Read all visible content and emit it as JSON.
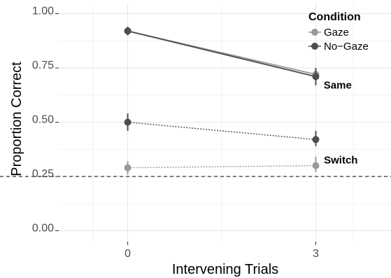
{
  "chart_data": {
    "type": "line",
    "xlabel": "Intervening Trials",
    "ylabel": "Proportion Correct",
    "x": [
      0,
      3
    ],
    "x_tick_labels": [
      "0",
      "3"
    ],
    "xlim": [
      -1.1,
      4.2
    ],
    "ylim": [
      -0.05,
      1.05
    ],
    "y_ticks": [
      0.0,
      0.25,
      0.5,
      0.75,
      1.0
    ],
    "y_tick_labels": [
      "0.00",
      "0.25",
      "0.50",
      "0.75",
      "1.00"
    ],
    "grid": true,
    "reference_line": {
      "y": 0.25,
      "style": "dashed"
    },
    "legend": {
      "title": "Condition",
      "position": "top-right",
      "entries": [
        {
          "label": "Gaze",
          "color": "#999999"
        },
        {
          "label": "No−Gaze",
          "color": "#4d4d4d"
        }
      ]
    },
    "series": [
      {
        "condition": "Gaze",
        "trial_type": "Same",
        "line_style": "solid",
        "color": "#999999",
        "values": [
          0.92,
          0.72
        ],
        "ci_low": [
          0.9,
          0.69
        ],
        "ci_high": [
          0.94,
          0.75
        ]
      },
      {
        "condition": "No-Gaze",
        "trial_type": "Same",
        "line_style": "solid",
        "color": "#4d4d4d",
        "values": [
          0.92,
          0.71
        ],
        "ci_low": [
          0.9,
          0.67
        ],
        "ci_high": [
          0.94,
          0.75
        ]
      },
      {
        "condition": "No-Gaze",
        "trial_type": "Switch",
        "line_style": "dotted",
        "color": "#4d4d4d",
        "values": [
          0.5,
          0.42
        ],
        "ci_low": [
          0.46,
          0.39
        ],
        "ci_high": [
          0.54,
          0.46
        ]
      },
      {
        "condition": "Gaze",
        "trial_type": "Switch",
        "line_style": "dotted",
        "color": "#999999",
        "values": [
          0.29,
          0.3
        ],
        "ci_low": [
          0.26,
          0.27
        ],
        "ci_high": [
          0.32,
          0.34
        ]
      }
    ],
    "annotations": [
      {
        "text": "Same",
        "x": 3.35,
        "y": 0.655
      },
      {
        "text": "Switch",
        "x": 3.4,
        "y": 0.31
      }
    ]
  }
}
